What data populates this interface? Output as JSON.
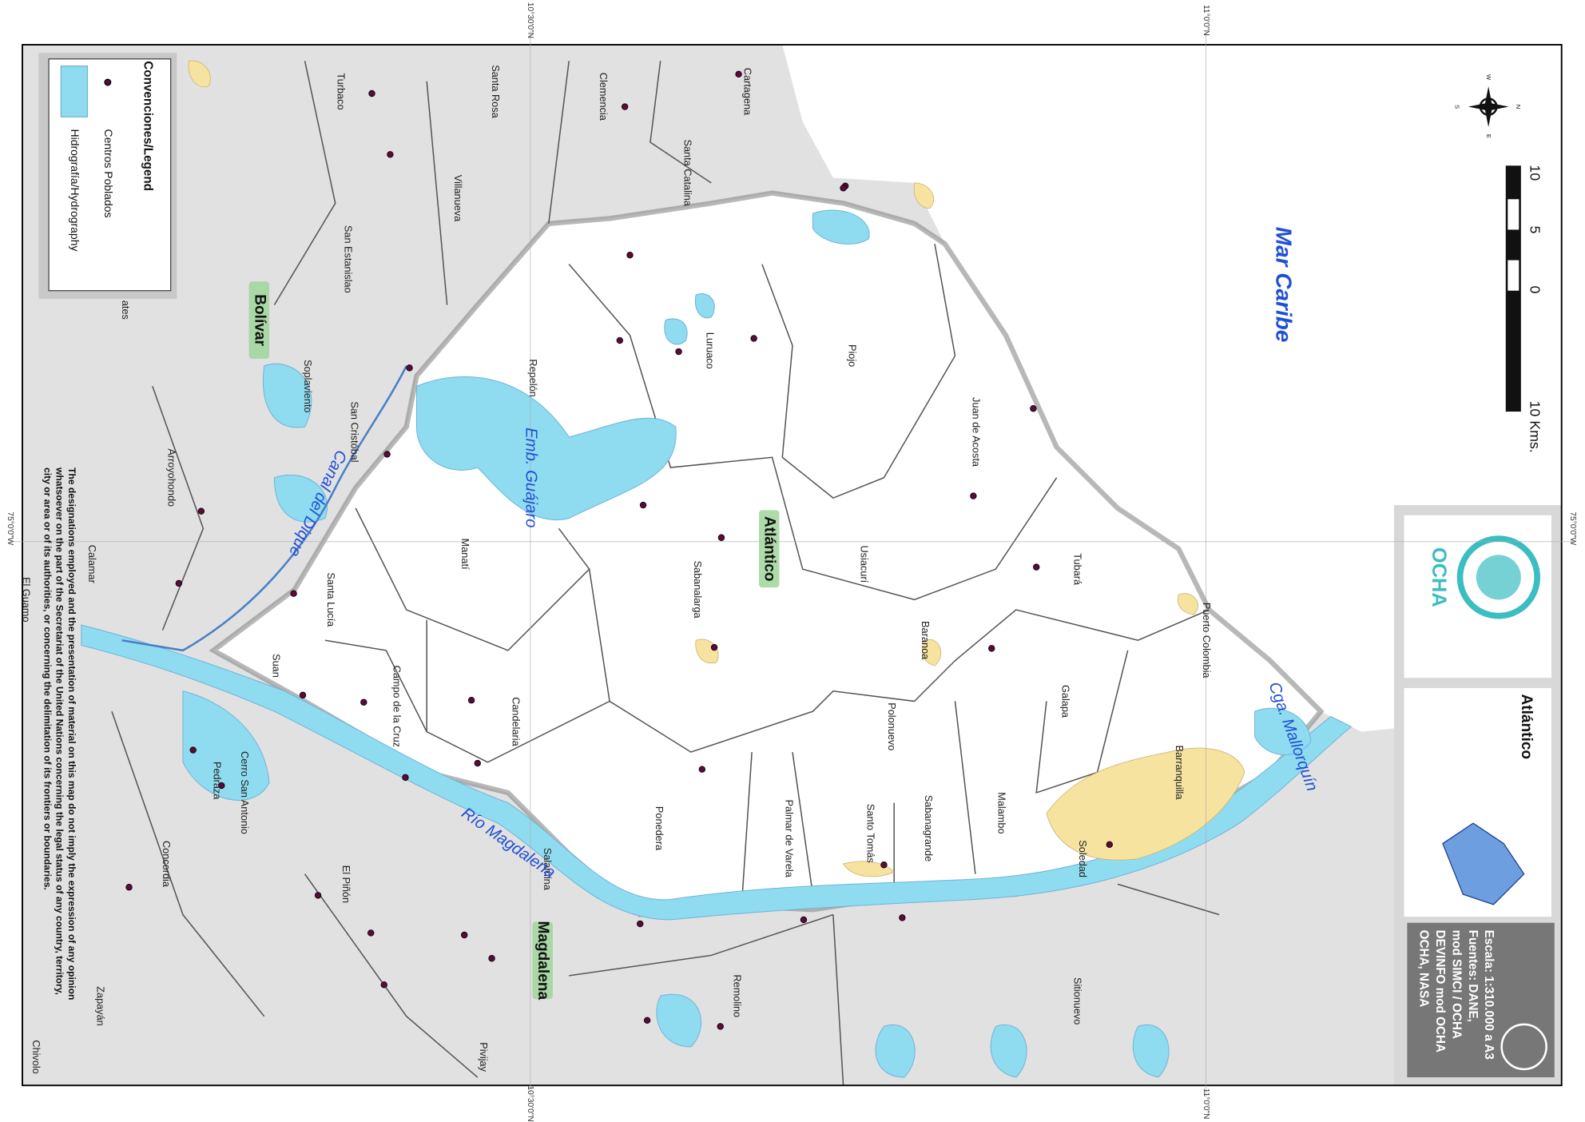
{
  "title": "Atlántico",
  "organization": "OCHA",
  "legend": {
    "title": "Convenciones/Legend",
    "items": [
      "Centros Poblados",
      "Hidrografía/Hydrography"
    ]
  },
  "info": [
    "Escala: 1:310.000 a A3",
    "Fuentes: DANE,",
    "mod SIMCI / OCHA",
    "DEVINFO mod OCHA",
    "OCHA, NASA"
  ],
  "scale_bar": [
    "10",
    "5",
    "0",
    "10 Kms."
  ],
  "compass": [
    "N",
    "S",
    "E",
    "W"
  ],
  "coordinates": [
    "10°30'0\"N",
    "11°0'0\"N",
    "75°0'0\"W"
  ],
  "regions": [
    "Atlántico",
    "Bolívar",
    "Magdalena"
  ],
  "water": [
    "Mar Caribe",
    "Emb. Guájaro",
    "Canal del Dique",
    "Río Magdalena",
    "Cga. Mallorquín"
  ],
  "places": [
    "Santa Rosa",
    "Turbaco",
    "Clemencia",
    "Cartagena",
    "Santa Catalina",
    "Villanueva",
    "San Estanislao",
    "Luruaco",
    "Piojo",
    "Repelón",
    "Soplaviento",
    "San Cristóbal",
    "Arroyohondo",
    "Juan de Acosta",
    "Usiacurí",
    "Tubará",
    "Manatí",
    "Sabanalarga",
    "Santa Lucía",
    "Calamar",
    "El Guamo",
    "Puerto Colombia",
    "Baranoa",
    "Suan",
    "Campo de la Cruz",
    "Galapa",
    "Candelaria",
    "Polonuevo",
    "Cerro San Antonio",
    "Barranquilla",
    "Pedraza",
    "Malambo",
    "Santo Tomás",
    "Sabanagrande",
    "Palmar de Varela",
    "Ponedera",
    "Soledad",
    "Salamina",
    "Concordia",
    "El Piñón",
    "Remolino",
    "Sitionuevo",
    "Zapayán",
    "Pivijay",
    "Chivolo",
    "ates"
  ],
  "disclaimer": [
    "The designations employed and the presentation of material on this map do not imply the expression of any opinion",
    "whatsoever on the part of the Secretariat of the United Nations concerning the legal status of any country, territory,",
    "city or area or of its authorities, or concerning the delimitation of its frontiers or boundaries."
  ]
}
